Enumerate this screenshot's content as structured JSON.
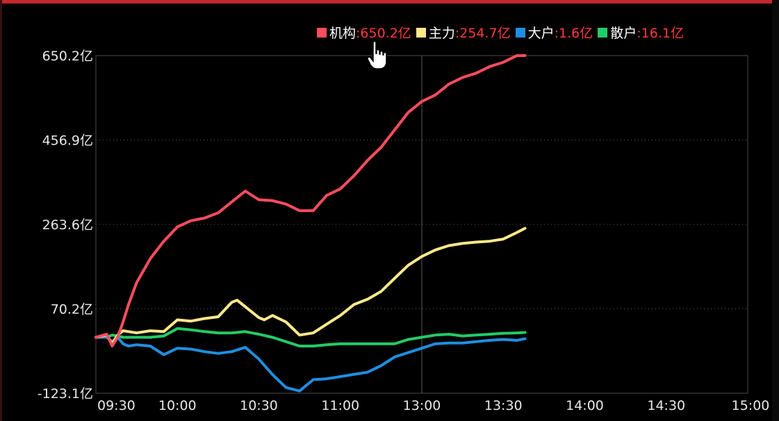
{
  "colors": {
    "jigou": "#ff4d5e",
    "zhuli": "#ffe98a",
    "dahu": "#1e8fe0",
    "sanhu": "#22cc66",
    "value_text": "#ff3a3a"
  },
  "legend": [
    {
      "name": "机构",
      "value": ":650.2亿",
      "color": "#ff4d5e"
    },
    {
      "name": "主力",
      "value": ":254.7亿",
      "color": "#ffe98a"
    },
    {
      "name": "大户",
      "value": ":1.6亿",
      "color": "#1e8fe0"
    },
    {
      "name": "散户",
      "value": ":16.1亿",
      "color": "#22cc66"
    }
  ],
  "cursor_icon": "hand-pointer-icon",
  "chart_data": {
    "type": "line",
    "y_ticks": [
      "650.2亿",
      "456.9亿",
      "263.6亿",
      "70.2亿",
      "-123.1亿"
    ],
    "y_tick_values": [
      650.2,
      456.9,
      263.6,
      70.2,
      -123.1
    ],
    "ylim": [
      -123.1,
      650.2
    ],
    "x_ticks": [
      "09:30",
      "10:00",
      "10:30",
      "11:00",
      "13:00",
      "13:30",
      "14:00",
      "14:30",
      "15:00"
    ],
    "x_tick_minutes": [
      0,
      30,
      60,
      90,
      120,
      150,
      180,
      210,
      240
    ],
    "xlim": [
      0,
      240
    ],
    "grid": true,
    "legend_position": "top",
    "series": [
      {
        "name": "机构",
        "color": "#ff4d5e",
        "x": [
          0,
          4,
          6,
          8,
          10,
          12,
          15,
          20,
          25,
          30,
          35,
          40,
          45,
          50,
          55,
          60,
          65,
          70,
          75,
          80,
          85,
          90,
          95,
          100,
          105,
          110,
          115,
          120,
          125,
          130,
          135,
          140,
          145,
          150,
          155,
          158
        ],
        "values": [
          5,
          12,
          -15,
          5,
          40,
          80,
          130,
          185,
          225,
          258,
          272,
          278,
          290,
          315,
          340,
          320,
          318,
          310,
          295,
          295,
          330,
          345,
          375,
          410,
          440,
          480,
          520,
          545,
          560,
          585,
          600,
          610,
          625,
          635,
          650,
          650.2
        ]
      },
      {
        "name": "主力",
        "color": "#ffe98a",
        "x": [
          0,
          4,
          6,
          8,
          10,
          12,
          15,
          20,
          25,
          30,
          35,
          40,
          45,
          50,
          52,
          55,
          58,
          60,
          62,
          65,
          70,
          75,
          80,
          85,
          90,
          95,
          100,
          105,
          110,
          115,
          120,
          125,
          130,
          135,
          140,
          145,
          150,
          155,
          158
        ],
        "values": [
          5,
          10,
          -10,
          10,
          20,
          18,
          15,
          20,
          18,
          45,
          42,
          48,
          52,
          85,
          90,
          75,
          60,
          50,
          45,
          55,
          40,
          10,
          15,
          35,
          55,
          80,
          92,
          110,
          140,
          170,
          190,
          205,
          215,
          220,
          223,
          225,
          230,
          245,
          254.7
        ]
      },
      {
        "name": "大户",
        "color": "#1e8fe0",
        "x": [
          0,
          4,
          6,
          8,
          10,
          12,
          15,
          20,
          25,
          30,
          35,
          40,
          45,
          50,
          55,
          60,
          65,
          70,
          75,
          80,
          85,
          90,
          95,
          100,
          105,
          110,
          115,
          120,
          125,
          130,
          135,
          140,
          145,
          150,
          155,
          158
        ],
        "values": [
          5,
          5,
          -5,
          5,
          -10,
          -15,
          -12,
          -15,
          -35,
          -20,
          -22,
          -28,
          -32,
          -28,
          -18,
          -45,
          -80,
          -110,
          -118,
          -92,
          -90,
          -85,
          -80,
          -75,
          -60,
          -40,
          -30,
          -20,
          -10,
          -8,
          -8,
          -5,
          -2,
          0,
          -2,
          1.6
        ]
      },
      {
        "name": "散户",
        "color": "#22cc66",
        "x": [
          0,
          4,
          6,
          8,
          10,
          12,
          15,
          20,
          25,
          30,
          35,
          40,
          45,
          50,
          55,
          60,
          65,
          70,
          75,
          80,
          85,
          90,
          95,
          100,
          105,
          110,
          115,
          120,
          125,
          130,
          135,
          140,
          145,
          150,
          155,
          158
        ],
        "values": [
          5,
          5,
          10,
          8,
          5,
          5,
          5,
          5,
          8,
          25,
          22,
          18,
          15,
          15,
          18,
          12,
          5,
          -5,
          -15,
          -15,
          -12,
          -10,
          -10,
          -10,
          -10,
          -10,
          0,
          5,
          10,
          12,
          8,
          10,
          12,
          14,
          15,
          16.1
        ]
      }
    ]
  }
}
